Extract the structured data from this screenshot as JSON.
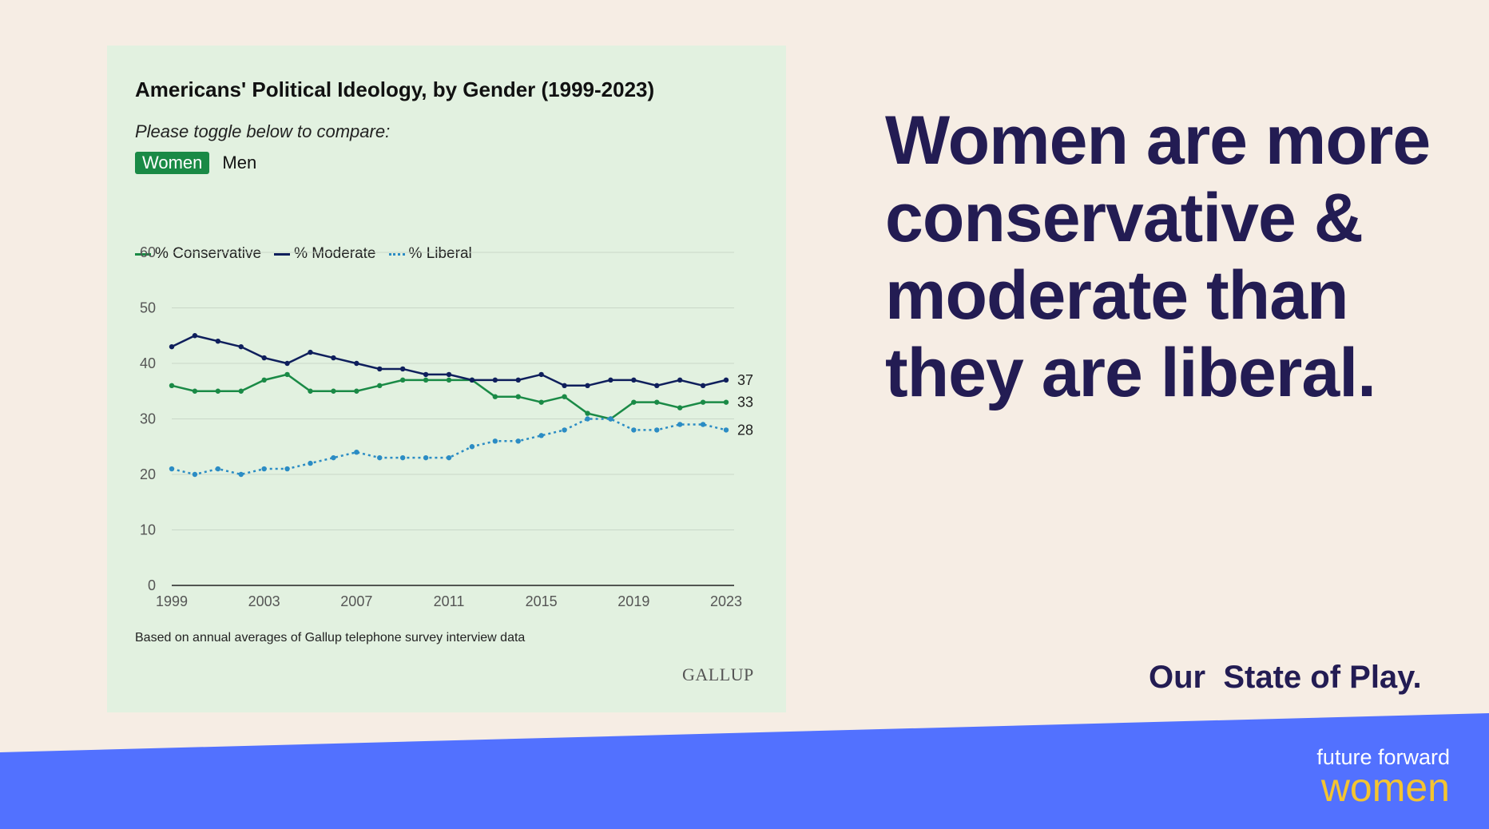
{
  "chart_title": "Americans' Political Ideology, by Gender (1999-2023)",
  "toggle": {
    "prompt": "Please toggle below to compare:",
    "active_label": "Women",
    "inactive_label": "Men"
  },
  "legend": {
    "conservative": "% Conservative",
    "moderate": "% Moderate",
    "liberal": "% Liberal"
  },
  "footnote": "Based on annual averages of Gallup telephone survey interview data",
  "source_logo": "GALLUP",
  "headline": "Women are more conservative & moderate than they are liberal.",
  "tagline": "Our  State of Play.",
  "brand": {
    "line1": "future forward",
    "line2": "women"
  },
  "colors": {
    "background": "#f6ede4",
    "card": "#e2f1e0",
    "conservative": "#1a8a46",
    "moderate": "#0f1f5c",
    "liberal": "#2b8cc4",
    "headline": "#231c53",
    "band": "#5271ff",
    "brand_accent": "#f4c430"
  },
  "chart_data": {
    "type": "line",
    "title": "Americans' Political Ideology, by Gender (1999-2023)",
    "xlabel": "",
    "ylabel": "",
    "x": [
      1999,
      2000,
      2001,
      2002,
      2003,
      2004,
      2005,
      2006,
      2007,
      2008,
      2009,
      2010,
      2011,
      2012,
      2013,
      2014,
      2015,
      2016,
      2017,
      2018,
      2019,
      2020,
      2021,
      2022,
      2023
    ],
    "xticks": [
      "1999",
      "2003",
      "2007",
      "2011",
      "2015",
      "2019",
      "2023"
    ],
    "yticks": [
      "0",
      "10",
      "20",
      "30",
      "40",
      "50",
      "60"
    ],
    "ylim": [
      0,
      60
    ],
    "xlim": [
      1999,
      2023
    ],
    "grid": true,
    "legend_position": "top-left",
    "series": [
      {
        "name": "% Conservative",
        "color": "#1a8a46",
        "style": "solid",
        "values": [
          36,
          35,
          35,
          35,
          37,
          38,
          35,
          35,
          35,
          36,
          37,
          37,
          37,
          37,
          34,
          34,
          33,
          34,
          31,
          30,
          33,
          33,
          32,
          33,
          33
        ],
        "end_label": "33"
      },
      {
        "name": "% Moderate",
        "color": "#0f1f5c",
        "style": "solid",
        "values": [
          43,
          45,
          44,
          43,
          41,
          40,
          42,
          41,
          40,
          39,
          39,
          38,
          38,
          37,
          37,
          37,
          38,
          36,
          36,
          37,
          37,
          36,
          37,
          36,
          37
        ],
        "end_label": "37"
      },
      {
        "name": "% Liberal",
        "color": "#2b8cc4",
        "style": "dotted",
        "values": [
          21,
          20,
          21,
          20,
          21,
          21,
          22,
          23,
          24,
          23,
          23,
          23,
          23,
          25,
          26,
          26,
          27,
          28,
          30,
          30,
          28,
          28,
          29,
          29,
          28
        ],
        "end_label": "28"
      }
    ]
  }
}
